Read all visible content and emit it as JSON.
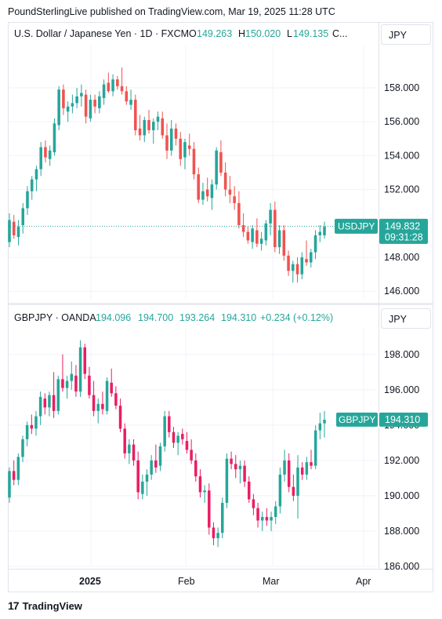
{
  "header": {
    "published": "PoundSterlingLive published on TradingView.com, Mar 19, 2025 11:28 UTC"
  },
  "footer": {
    "logo_text": "TradingView",
    "logo_mark": "17"
  },
  "colors": {
    "up": "#26a69a",
    "down_top": "#ef5350",
    "down_bottom": "#e91e63",
    "grid": "#f0f3fa",
    "text": "#131722",
    "border": "#e0e3eb"
  },
  "time_axis": {
    "labels": [
      "2025",
      "Feb",
      "Mar",
      "Apr"
    ]
  },
  "panes": [
    {
      "title": "U.S. Dollar / Japanese Yen · 1D · FXCM",
      "ohlc": {
        "o_label": "O",
        "o": "149.263",
        "h_label": "H",
        "h": "150.020",
        "l_label": "L",
        "l": "149.135",
        "c_label": "C..."
      },
      "currency": "JPY",
      "symbol_tag": "USDJPY",
      "price_tag": "149.832",
      "countdown": "09:31:28",
      "axis_labels": [
        "158.000",
        "156.000",
        "154.000",
        "152.000",
        "148.000",
        "146.000"
      ]
    },
    {
      "title": "GBPJPY · OANDA",
      "ohlc": {
        "o": "194.096",
        "h": "194.700",
        "l": "193.264",
        "c": "194.310",
        "change": "+0.234 (+0.12%)"
      },
      "currency": "JPY",
      "symbol_tag": "GBPJPY",
      "price_tag": "194.310",
      "axis_labels": [
        "198.000",
        "196.000",
        "194.000",
        "192.000",
        "190.000",
        "188.000",
        "186.000"
      ]
    }
  ],
  "chart_data": [
    {
      "type": "candlestick",
      "title": "U.S. Dollar / Japanese Yen · 1D · FXCM",
      "ylim": [
        145.5,
        160.5
      ],
      "last": 149.832,
      "candles": [
        [
          148.9,
          150.6,
          148.6,
          150.2
        ],
        [
          150.1,
          150.5,
          149.1,
          149.3
        ],
        [
          149.2,
          150.2,
          148.7,
          149.8
        ],
        [
          149.9,
          151.2,
          149.4,
          150.9
        ],
        [
          150.9,
          152.2,
          150.5,
          151.9
        ],
        [
          151.9,
          152.8,
          151.4,
          152.6
        ],
        [
          152.6,
          153.4,
          151.9,
          153.2
        ],
        [
          153.2,
          154.8,
          152.8,
          154.5
        ],
        [
          154.5,
          154.9,
          153.6,
          153.9
        ],
        [
          153.8,
          154.6,
          153.4,
          154.3
        ],
        [
          154.2,
          156.2,
          154.0,
          155.9
        ],
        [
          155.8,
          158.1,
          155.5,
          157.9
        ],
        [
          157.9,
          158.2,
          156.4,
          156.8
        ],
        [
          156.6,
          157.2,
          156.0,
          156.9
        ],
        [
          156.9,
          157.6,
          156.5,
          157.1
        ],
        [
          157.1,
          158.0,
          156.8,
          157.5
        ],
        [
          157.5,
          158.2,
          156.9,
          157.7
        ],
        [
          157.6,
          157.9,
          155.9,
          156.3
        ],
        [
          156.2,
          157.6,
          156.0,
          157.3
        ],
        [
          157.3,
          157.6,
          156.5,
          156.9
        ],
        [
          156.8,
          157.8,
          156.5,
          157.5
        ],
        [
          157.4,
          158.5,
          157.0,
          158.2
        ],
        [
          158.3,
          158.9,
          157.7,
          157.8
        ],
        [
          157.8,
          158.8,
          157.5,
          158.5
        ],
        [
          158.5,
          158.7,
          157.9,
          158.1
        ],
        [
          158.1,
          159.2,
          157.6,
          157.8
        ],
        [
          157.8,
          158.1,
          157.0,
          157.2
        ],
        [
          157.0,
          157.9,
          156.7,
          157.3
        ],
        [
          157.3,
          157.6,
          155.2,
          155.5
        ],
        [
          155.6,
          156.4,
          154.9,
          155.2
        ],
        [
          155.2,
          156.3,
          154.8,
          156.1
        ],
        [
          156.1,
          156.7,
          155.3,
          155.5
        ],
        [
          155.5,
          156.2,
          154.7,
          156.0
        ],
        [
          156.0,
          156.6,
          155.5,
          156.3
        ],
        [
          156.2,
          156.6,
          155.0,
          155.2
        ],
        [
          155.2,
          155.9,
          153.8,
          154.3
        ],
        [
          154.3,
          156.1,
          154.0,
          155.6
        ],
        [
          155.6,
          155.9,
          154.6,
          155.0
        ],
        [
          155.0,
          155.4,
          153.4,
          153.8
        ],
        [
          153.9,
          155.0,
          153.2,
          154.8
        ],
        [
          154.6,
          155.3,
          154.0,
          154.4
        ],
        [
          154.4,
          154.8,
          152.6,
          152.9
        ],
        [
          152.9,
          153.3,
          151.2,
          151.4
        ],
        [
          151.4,
          152.4,
          151.1,
          151.9
        ],
        [
          152.0,
          152.7,
          151.3,
          151.6
        ],
        [
          151.5,
          152.6,
          150.8,
          152.3
        ],
        [
          152.3,
          154.5,
          152.0,
          154.3
        ],
        [
          154.2,
          154.9,
          152.8,
          153.0
        ],
        [
          153.0,
          153.6,
          151.6,
          152.0
        ],
        [
          152.0,
          152.8,
          151.2,
          151.7
        ],
        [
          151.6,
          152.2,
          150.8,
          151.2
        ],
        [
          151.2,
          151.9,
          149.7,
          149.9
        ],
        [
          149.9,
          150.6,
          149.2,
          149.5
        ],
        [
          149.5,
          149.8,
          148.8,
          149.0
        ],
        [
          148.9,
          149.9,
          148.5,
          149.7
        ],
        [
          149.6,
          150.3,
          148.6,
          148.8
        ],
        [
          148.8,
          149.5,
          148.4,
          149.1
        ],
        [
          149.0,
          150.2,
          148.7,
          150.0
        ],
        [
          150.0,
          151.2,
          149.3,
          150.8
        ],
        [
          150.8,
          151.3,
          148.3,
          148.6
        ],
        [
          148.6,
          149.9,
          148.2,
          149.6
        ],
        [
          149.6,
          149.9,
          147.8,
          148.1
        ],
        [
          148.1,
          148.4,
          146.9,
          147.2
        ],
        [
          147.2,
          147.8,
          146.5,
          147.6
        ],
        [
          147.6,
          148.0,
          146.5,
          147.0
        ],
        [
          147.0,
          148.3,
          146.7,
          148.0
        ],
        [
          147.9,
          149.0,
          147.5,
          147.7
        ],
        [
          147.7,
          148.5,
          147.4,
          148.3
        ],
        [
          148.3,
          149.6,
          147.9,
          149.3
        ],
        [
          149.3,
          149.9,
          148.9,
          149.5
        ],
        [
          149.3,
          150.1,
          149.1,
          149.8
        ]
      ]
    },
    {
      "type": "candlestick",
      "title": "GBPJPY · OANDA",
      "ylim": [
        186.0,
        199.5
      ],
      "last": 194.31,
      "candles": [
        [
          189.9,
          191.6,
          189.6,
          191.4
        ],
        [
          191.4,
          192.0,
          190.6,
          190.9
        ],
        [
          190.9,
          192.4,
          190.6,
          192.2
        ],
        [
          192.2,
          193.4,
          191.9,
          193.2
        ],
        [
          193.2,
          194.2,
          192.8,
          194.0
        ],
        [
          194.0,
          194.6,
          193.5,
          193.8
        ],
        [
          193.8,
          194.8,
          193.4,
          194.5
        ],
        [
          194.5,
          195.9,
          194.0,
          195.6
        ],
        [
          195.5,
          195.8,
          194.6,
          195.0
        ],
        [
          195.0,
          195.9,
          194.5,
          195.7
        ],
        [
          195.7,
          197.0,
          194.4,
          194.8
        ],
        [
          194.8,
          196.8,
          194.6,
          196.6
        ],
        [
          196.6,
          198.0,
          195.9,
          196.1
        ],
        [
          196.1,
          196.8,
          195.5,
          196.5
        ],
        [
          196.5,
          197.6,
          196.0,
          196.9
        ],
        [
          196.8,
          197.4,
          195.6,
          195.9
        ],
        [
          195.9,
          198.8,
          195.6,
          198.4
        ],
        [
          198.4,
          198.6,
          196.6,
          196.9
        ],
        [
          196.8,
          197.3,
          195.5,
          195.7
        ],
        [
          195.7,
          196.5,
          194.5,
          194.8
        ],
        [
          194.8,
          195.5,
          194.1,
          195.2
        ],
        [
          195.2,
          195.9,
          194.6,
          194.9
        ],
        [
          194.8,
          196.7,
          194.6,
          196.5
        ],
        [
          196.4,
          197.2,
          195.6,
          195.8
        ],
        [
          195.8,
          196.2,
          194.9,
          195.1
        ],
        [
          195.1,
          195.5,
          193.6,
          193.8
        ],
        [
          193.8,
          194.1,
          192.1,
          192.4
        ],
        [
          192.4,
          193.2,
          191.8,
          192.9
        ],
        [
          192.9,
          193.2,
          191.7,
          192.0
        ],
        [
          192.0,
          192.5,
          189.8,
          190.2
        ],
        [
          190.1,
          191.2,
          189.8,
          190.8
        ],
        [
          190.8,
          191.5,
          190.0,
          191.2
        ],
        [
          191.2,
          192.3,
          190.9,
          192.0
        ],
        [
          192.0,
          192.9,
          191.3,
          191.6
        ],
        [
          191.7,
          193.0,
          191.4,
          192.8
        ],
        [
          192.8,
          194.8,
          192.5,
          194.5
        ],
        [
          194.5,
          194.8,
          193.3,
          193.6
        ],
        [
          193.6,
          193.9,
          192.7,
          193.0
        ],
        [
          193.0,
          193.6,
          192.3,
          193.4
        ],
        [
          193.5,
          193.8,
          192.9,
          193.2
        ],
        [
          193.1,
          193.6,
          192.4,
          192.6
        ],
        [
          192.6,
          193.2,
          191.8,
          192.0
        ],
        [
          192.0,
          192.4,
          190.8,
          191.1
        ],
        [
          191.1,
          191.5,
          189.9,
          190.2
        ],
        [
          190.2,
          190.6,
          189.6,
          190.3
        ],
        [
          190.3,
          190.7,
          187.8,
          188.2
        ],
        [
          188.2,
          188.5,
          187.2,
          187.6
        ],
        [
          187.6,
          188.2,
          187.1,
          187.9
        ],
        [
          187.9,
          189.9,
          187.6,
          189.6
        ],
        [
          189.6,
          192.4,
          189.3,
          192.1
        ],
        [
          192.1,
          192.5,
          191.5,
          191.8
        ],
        [
          191.8,
          192.3,
          191.0,
          191.5
        ],
        [
          191.5,
          192.0,
          190.7,
          191.7
        ],
        [
          191.7,
          192.0,
          190.5,
          190.8
        ],
        [
          190.8,
          191.1,
          189.6,
          189.8
        ],
        [
          189.8,
          190.1,
          188.9,
          189.3
        ],
        [
          189.3,
          189.6,
          188.2,
          188.6
        ],
        [
          188.6,
          189.1,
          188.0,
          188.8
        ],
        [
          188.8,
          189.3,
          188.3,
          188.6
        ],
        [
          188.6,
          189.1,
          188.0,
          188.8
        ],
        [
          188.8,
          189.7,
          188.4,
          189.4
        ],
        [
          189.4,
          191.6,
          189.0,
          191.2
        ],
        [
          191.2,
          192.6,
          190.8,
          192.0
        ],
        [
          192.0,
          192.4,
          190.2,
          190.5
        ],
        [
          190.5,
          191.2,
          189.7,
          190.0
        ],
        [
          190.0,
          192.3,
          188.7,
          191.6
        ],
        [
          191.6,
          191.9,
          190.9,
          191.2
        ],
        [
          191.2,
          192.2,
          190.9,
          191.9
        ],
        [
          191.9,
          192.6,
          191.5,
          191.7
        ],
        [
          191.7,
          194.0,
          191.5,
          193.7
        ],
        [
          193.7,
          194.7,
          193.2,
          194.1
        ],
        [
          194.1,
          194.8,
          193.3,
          194.3
        ]
      ]
    }
  ]
}
